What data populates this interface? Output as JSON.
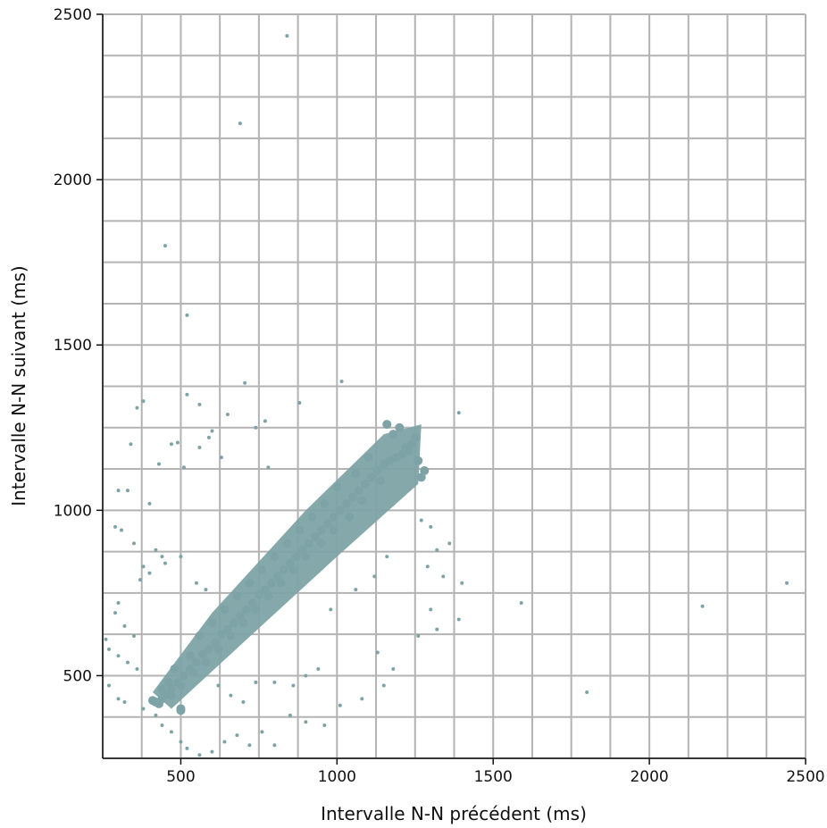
{
  "chart_data": {
    "type": "scatter",
    "title": "",
    "xlabel": "Intervalle N-N précédent (ms)",
    "ylabel": "Intervalle N-N suivant (ms)",
    "xlim": [
      250,
      2500
    ],
    "ylim": [
      250,
      2500
    ],
    "x_ticks": [
      500,
      1000,
      1500,
      2000,
      2500
    ],
    "y_ticks": [
      500,
      1000,
      1500,
      2000,
      2500
    ],
    "x_tick_labels": [
      "500",
      "1000",
      "1500",
      "2000",
      "2500"
    ],
    "y_tick_labels": [
      "500",
      "1000",
      "1500",
      "2000",
      "2500"
    ],
    "grid": true,
    "grid_step": 125,
    "grid_color": "#b3b3b3",
    "marker_color": "#7ea3a6",
    "series": [
      {
        "description_of_bulk": "dense cloud along identity line",
        "points": [
          [
            410,
            425
          ],
          [
            420,
            420
          ],
          [
            430,
            415
          ],
          [
            440,
            430
          ],
          [
            450,
            445
          ],
          [
            470,
            460
          ],
          [
            490,
            480
          ],
          [
            500,
            400
          ],
          [
            500,
            395
          ],
          [
            510,
            500
          ],
          [
            530,
            520
          ],
          [
            550,
            540
          ],
          [
            570,
            565
          ],
          [
            590,
            580
          ],
          [
            610,
            600
          ],
          [
            630,
            625
          ],
          [
            650,
            640
          ],
          [
            670,
            660
          ],
          [
            690,
            680
          ],
          [
            710,
            700
          ],
          [
            730,
            720
          ],
          [
            750,
            745
          ],
          [
            770,
            760
          ],
          [
            790,
            780
          ],
          [
            810,
            800
          ],
          [
            830,
            820
          ],
          [
            850,
            840
          ],
          [
            870,
            860
          ],
          [
            890,
            880
          ],
          [
            910,
            900
          ],
          [
            930,
            920
          ],
          [
            950,
            940
          ],
          [
            970,
            960
          ],
          [
            990,
            980
          ],
          [
            1010,
            1000
          ],
          [
            1030,
            1020
          ],
          [
            1050,
            1040
          ],
          [
            1070,
            1060
          ],
          [
            1090,
            1080
          ],
          [
            1110,
            1100
          ],
          [
            1130,
            1120
          ],
          [
            1150,
            1140
          ],
          [
            1170,
            1150
          ],
          [
            1190,
            1160
          ],
          [
            1210,
            1170
          ],
          [
            1230,
            1180
          ],
          [
            1240,
            1200
          ],
          [
            1250,
            1220
          ],
          [
            1200,
            1250
          ],
          [
            1160,
            1260
          ],
          [
            1260,
            1150
          ],
          [
            1280,
            1120
          ],
          [
            1270,
            1100
          ],
          [
            1180,
            1230
          ],
          [
            1220,
            1190
          ],
          [
            1100,
            1160
          ],
          [
            1140,
            1090
          ],
          [
            1060,
            1110
          ],
          [
            1080,
            1030
          ],
          [
            1000,
            1070
          ],
          [
            1040,
            980
          ],
          [
            960,
            1020
          ],
          [
            990,
            940
          ],
          [
            920,
            980
          ],
          [
            950,
            900
          ],
          [
            880,
            940
          ],
          [
            900,
            860
          ],
          [
            840,
            900
          ],
          [
            860,
            820
          ],
          [
            800,
            860
          ],
          [
            820,
            780
          ],
          [
            760,
            820
          ],
          [
            780,
            740
          ],
          [
            720,
            780
          ],
          [
            740,
            700
          ],
          [
            680,
            740
          ],
          [
            700,
            660
          ],
          [
            640,
            700
          ],
          [
            660,
            620
          ],
          [
            600,
            660
          ],
          [
            620,
            580
          ],
          [
            560,
            620
          ],
          [
            580,
            540
          ],
          [
            530,
            560
          ],
          [
            540,
            510
          ],
          [
            480,
            520
          ],
          [
            500,
            470
          ],
          [
            460,
            480
          ],
          [
            470,
            440
          ],
          [
            440,
            460
          ]
        ]
      },
      {
        "description_of_bulk": "scattered outliers",
        "points": [
          [
            840,
            2435
          ],
          [
            690,
            2170
          ],
          [
            450,
            1800
          ],
          [
            520,
            1590
          ],
          [
            705,
            1385
          ],
          [
            1015,
            1390
          ],
          [
            880,
            1325
          ],
          [
            520,
            1350
          ],
          [
            560,
            1320
          ],
          [
            380,
            1330
          ],
          [
            360,
            1310
          ],
          [
            650,
            1290
          ],
          [
            770,
            1270
          ],
          [
            740,
            1250
          ],
          [
            1390,
            1295
          ],
          [
            600,
            1240
          ],
          [
            590,
            1220
          ],
          [
            490,
            1205
          ],
          [
            470,
            1200
          ],
          [
            340,
            1200
          ],
          [
            560,
            1190
          ],
          [
            630,
            1160
          ],
          [
            430,
            1140
          ],
          [
            510,
            1130
          ],
          [
            780,
            1130
          ],
          [
            300,
            1060
          ],
          [
            330,
            1060
          ],
          [
            400,
            1020
          ],
          [
            290,
            950
          ],
          [
            310,
            940
          ],
          [
            350,
            900
          ],
          [
            420,
            880
          ],
          [
            440,
            860
          ],
          [
            380,
            830
          ],
          [
            400,
            810
          ],
          [
            370,
            790
          ],
          [
            450,
            840
          ],
          [
            500,
            860
          ],
          [
            550,
            780
          ],
          [
            580,
            760
          ],
          [
            300,
            720
          ],
          [
            290,
            690
          ],
          [
            320,
            650
          ],
          [
            350,
            620
          ],
          [
            260,
            610
          ],
          [
            270,
            580
          ],
          [
            300,
            560
          ],
          [
            330,
            540
          ],
          [
            360,
            520
          ],
          [
            270,
            470
          ],
          [
            300,
            430
          ],
          [
            320,
            420
          ],
          [
            380,
            400
          ],
          [
            420,
            380
          ],
          [
            440,
            350
          ],
          [
            470,
            330
          ],
          [
            500,
            300
          ],
          [
            520,
            280
          ],
          [
            560,
            260
          ],
          [
            600,
            270
          ],
          [
            640,
            300
          ],
          [
            680,
            320
          ],
          [
            720,
            290
          ],
          [
            760,
            330
          ],
          [
            800,
            290
          ],
          [
            850,
            380
          ],
          [
            900,
            360
          ],
          [
            960,
            350
          ],
          [
            1010,
            410
          ],
          [
            1080,
            430
          ],
          [
            1150,
            470
          ],
          [
            1180,
            520
          ],
          [
            1130,
            570
          ],
          [
            1260,
            620
          ],
          [
            1320,
            640
          ],
          [
            1300,
            700
          ],
          [
            1390,
            670
          ],
          [
            1400,
            780
          ],
          [
            1340,
            800
          ],
          [
            1290,
            830
          ],
          [
            1320,
            880
          ],
          [
            1360,
            900
          ],
          [
            1300,
            950
          ],
          [
            1270,
            970
          ],
          [
            1590,
            720
          ],
          [
            1800,
            450
          ],
          [
            2170,
            710
          ],
          [
            2440,
            780
          ],
          [
            740,
            480
          ],
          [
            800,
            480
          ],
          [
            860,
            470
          ],
          [
            900,
            500
          ],
          [
            940,
            520
          ],
          [
            620,
            470
          ],
          [
            660,
            440
          ],
          [
            700,
            420
          ],
          [
            980,
            700
          ],
          [
            1060,
            760
          ],
          [
            1120,
            800
          ],
          [
            1160,
            860
          ]
        ]
      }
    ]
  }
}
